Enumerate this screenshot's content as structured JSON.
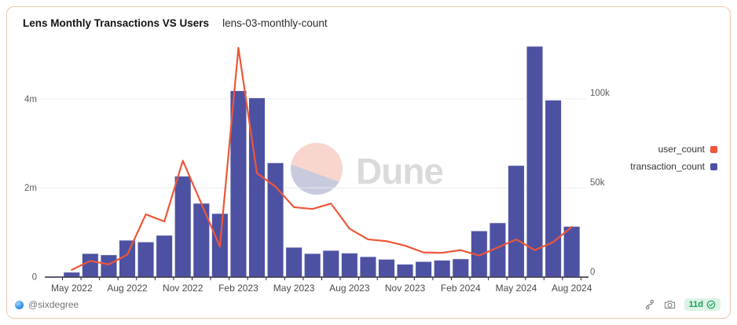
{
  "header": {
    "title": "Lens Monthly Transactions VS Users",
    "query_name": "lens-03-monthly-count"
  },
  "watermark": {
    "text": "Dune"
  },
  "legend": [
    {
      "label": "user_count",
      "color": "#ee5638"
    },
    {
      "label": "transaction_count",
      "color": "#4d51a2"
    }
  ],
  "footer": {
    "author": "@sixdegree",
    "age_badge": "11d",
    "icons": [
      "fork-icon",
      "camera-icon",
      "check-circle-icon"
    ]
  },
  "colors": {
    "bar": "#4d51a2",
    "line": "#ee5638",
    "gridline": "#ececec",
    "axis_line": "#26263f",
    "axis_label": "#5c5c5c",
    "x_label": "#4a4a4a",
    "card_border": "#f2c7ad",
    "badge_green": "#18a05b"
  },
  "chart_data": {
    "type": "bar+line",
    "title": "Lens Monthly Transactions VS Users",
    "categories": [
      "May 2022",
      "Jun 2022",
      "Jul 2022",
      "Aug 2022",
      "Sep 2022",
      "Oct 2022",
      "Nov 2022",
      "Dec 2022",
      "Jan 2023",
      "Feb 2023",
      "Mar 2023",
      "Apr 2023",
      "May 2023",
      "Jun 2023",
      "Jul 2023",
      "Aug 2023",
      "Sep 2023",
      "Oct 2023",
      "Nov 2023",
      "Dec 2023",
      "Jan 2024",
      "Feb 2024",
      "Mar 2024",
      "Apr 2024",
      "May 2024",
      "Jun 2024",
      "Jul 2024",
      "Aug 2024"
    ],
    "series": [
      {
        "name": "transaction_count",
        "type": "bar",
        "axis": "left",
        "unit": "millions",
        "color": "#4d51a2",
        "values": [
          0.1,
          0.52,
          0.49,
          0.82,
          0.78,
          0.93,
          2.26,
          1.65,
          1.42,
          4.18,
          4.02,
          2.56,
          0.66,
          0.52,
          0.59,
          0.53,
          0.45,
          0.39,
          0.28,
          0.34,
          0.37,
          0.4,
          1.03,
          1.21,
          2.5,
          5.18,
          3.97,
          1.13
        ]
      },
      {
        "name": "user_count",
        "type": "line",
        "axis": "right",
        "unit": "thousands",
        "color": "#ee5638",
        "values": [
          1,
          6,
          4,
          9.5,
          32,
          28,
          62,
          38,
          14,
          125,
          55,
          47.5,
          36,
          35,
          38,
          24,
          18,
          17,
          14.5,
          10.7,
          10.5,
          12,
          9,
          13.5,
          18,
          12,
          16.5,
          25
        ]
      }
    ],
    "left_axis": {
      "ticks": [
        {
          "label": "0",
          "m": 0
        },
        {
          "label": "2m",
          "m": 2
        },
        {
          "label": "4m",
          "m": 4
        }
      ],
      "range_millions": [
        0,
        5.3
      ]
    },
    "right_axis": {
      "ticks": [
        {
          "label": "0",
          "k": 0
        },
        {
          "label": "50k",
          "k": 50
        },
        {
          "label": "100k",
          "k": 100
        }
      ],
      "range_thousands": [
        0,
        127
      ]
    },
    "x_tick_labels": [
      "May 2022",
      "Aug 2022",
      "Nov 2022",
      "Feb 2023",
      "May 2023",
      "Aug 2023",
      "Nov 2023",
      "Feb 2024",
      "May 2024",
      "Aug 2024"
    ],
    "x_tick_every": 3,
    "grid": "horizontal",
    "legend_position": "right"
  }
}
